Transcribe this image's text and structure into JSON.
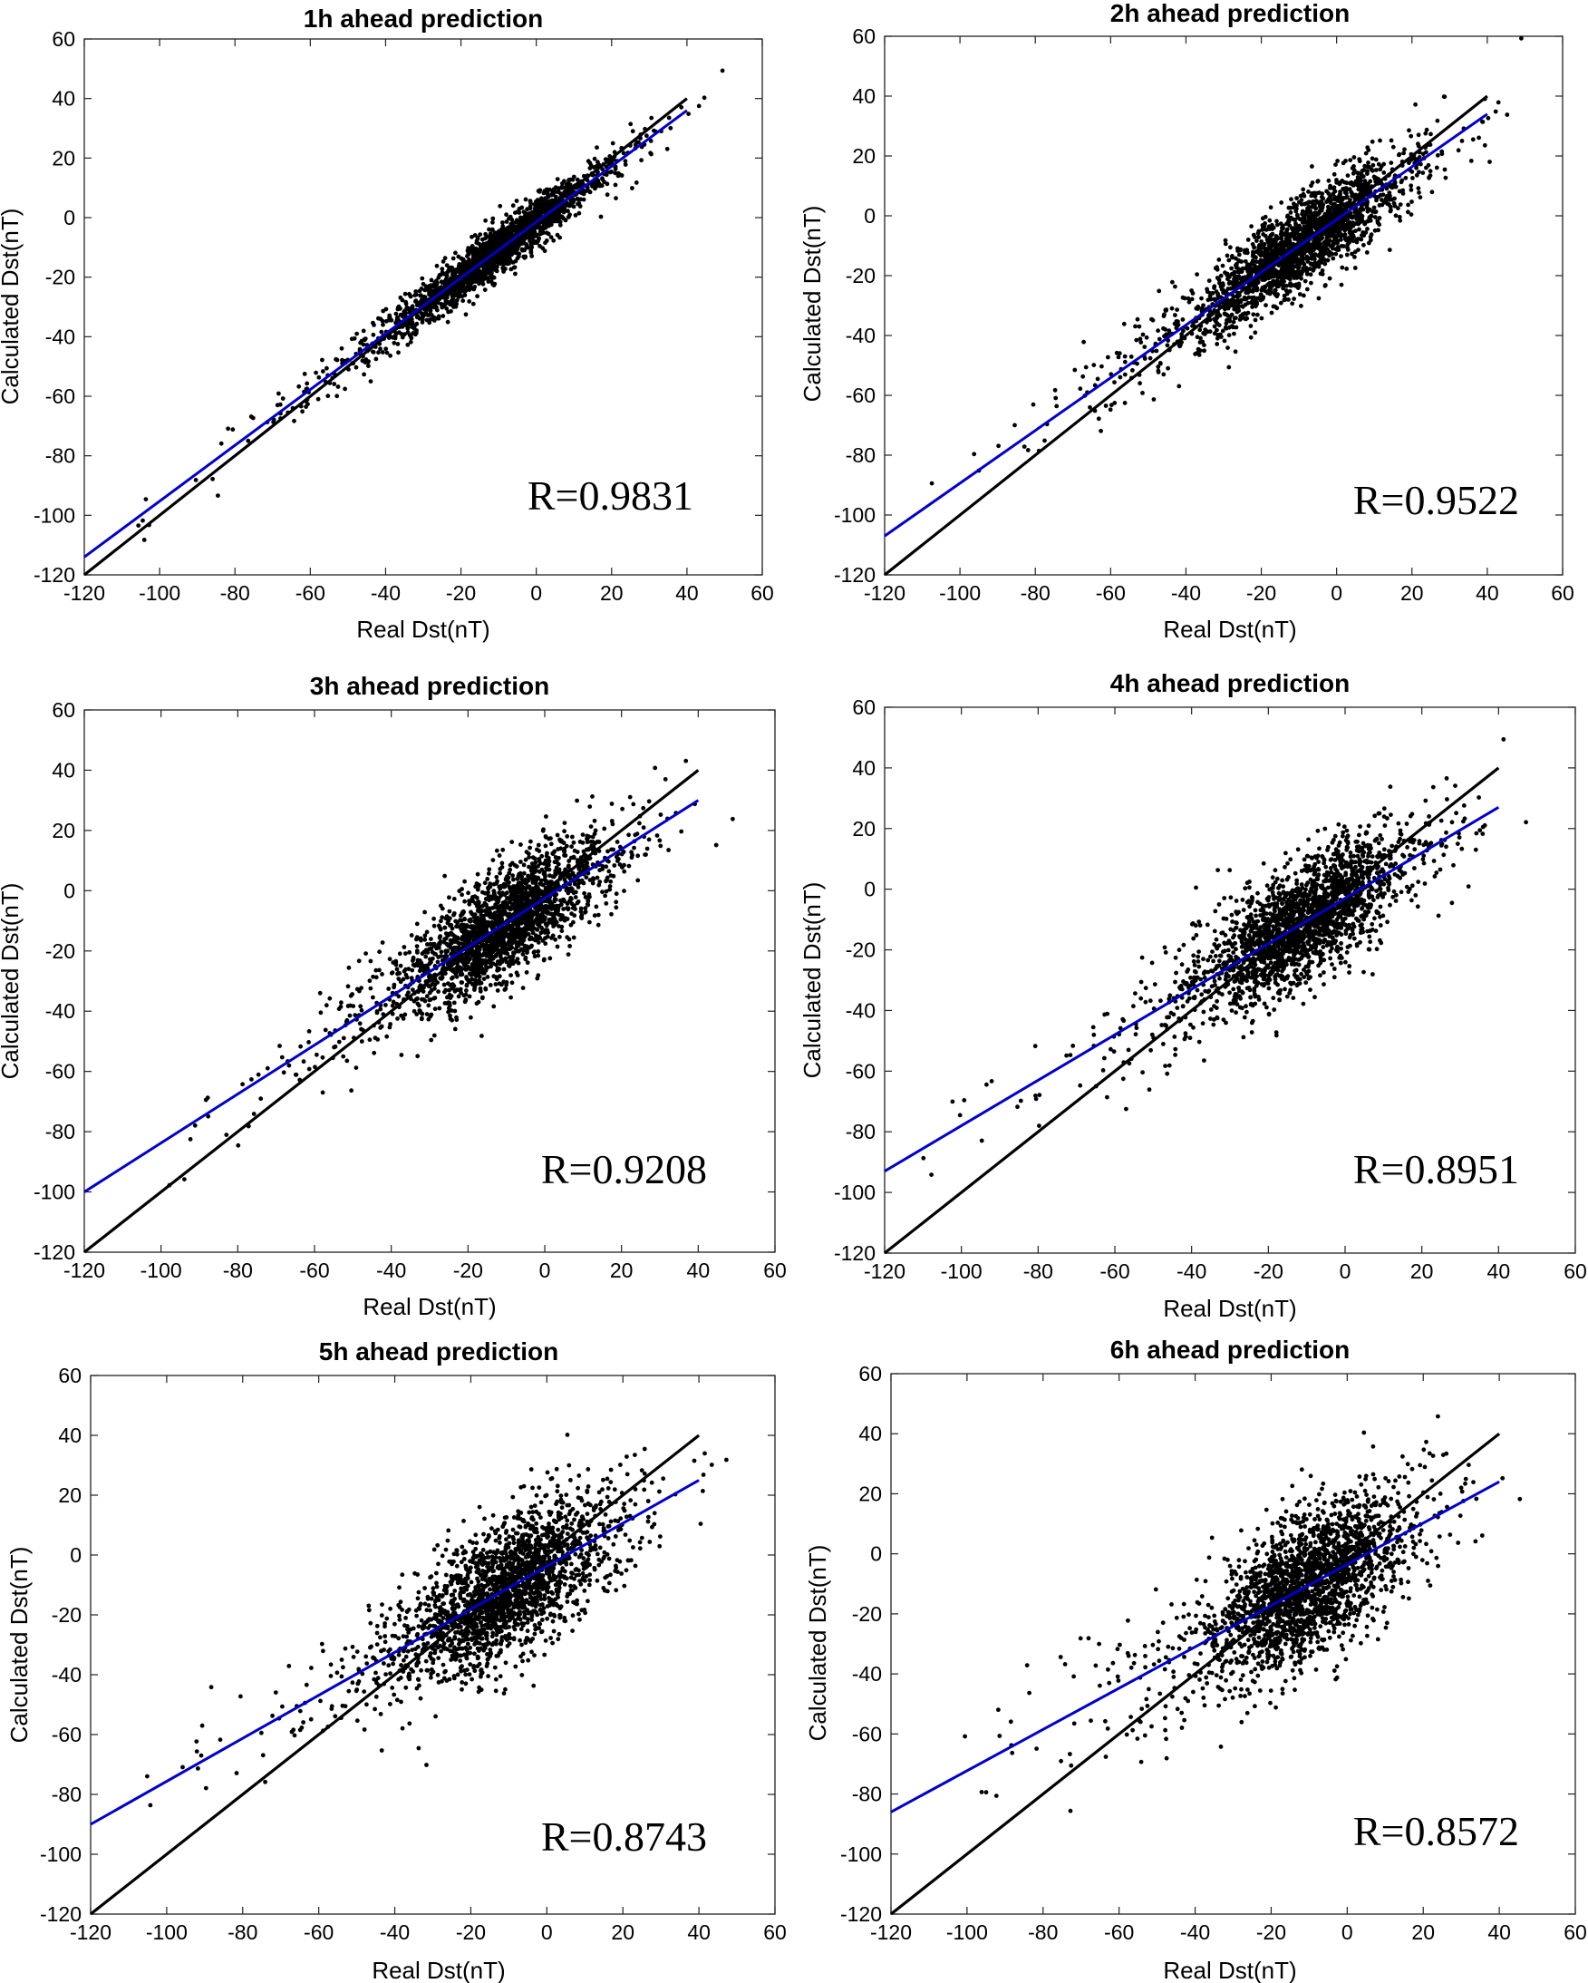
{
  "chart_data": [
    {
      "type": "scatter",
      "title": "1h ahead prediction",
      "xlabel": "Real Dst(nT)",
      "ylabel": "Calculated Dst(nT)",
      "xlim": [
        -120,
        60
      ],
      "ylim": [
        -120,
        60
      ],
      "xticks": [
        -120,
        -100,
        -80,
        -60,
        -40,
        -20,
        0,
        20,
        40,
        60
      ],
      "yticks": [
        -120,
        -100,
        -80,
        -60,
        -40,
        -20,
        0,
        20,
        40,
        60
      ],
      "annotation": "R=0.9831",
      "correlation": 0.9831,
      "series": [
        {
          "name": "Identity line",
          "color": "#000000",
          "x": [
            -120,
            40
          ],
          "y": [
            -120,
            40
          ]
        },
        {
          "name": "Fitted line",
          "color": "#0000cc",
          "x": [
            -120,
            40
          ],
          "y": [
            -114,
            36
          ]
        },
        {
          "name": "Points",
          "color": "#000000",
          "center_x": -10,
          "spread": 4,
          "x_range": [
            -110,
            50
          ]
        }
      ]
    },
    {
      "type": "scatter",
      "title": "2h ahead prediction",
      "xlabel": "Real Dst(nT)",
      "ylabel": "Calculated Dst(nT)",
      "xlim": [
        -120,
        60
      ],
      "ylim": [
        -120,
        60
      ],
      "xticks": [
        -120,
        -100,
        -80,
        -60,
        -40,
        -20,
        0,
        20,
        40,
        60
      ],
      "yticks": [
        -120,
        -100,
        -80,
        -60,
        -40,
        -20,
        0,
        20,
        40,
        60
      ],
      "annotation": "R=0.9522",
      "correlation": 0.9522,
      "series": [
        {
          "name": "Identity line",
          "color": "#000000",
          "x": [
            -120,
            40
          ],
          "y": [
            -120,
            40
          ]
        },
        {
          "name": "Fitted line",
          "color": "#0000cc",
          "x": [
            -120,
            40
          ],
          "y": [
            -107,
            34
          ]
        },
        {
          "name": "Points",
          "color": "#000000",
          "center_x": -10,
          "spread": 7,
          "x_range": [
            -110,
            50
          ]
        }
      ]
    },
    {
      "type": "scatter",
      "title": "3h ahead prediction",
      "xlabel": "Real Dst(nT)",
      "ylabel": "Calculated Dst(nT)",
      "xlim": [
        -120,
        60
      ],
      "ylim": [
        -120,
        60
      ],
      "xticks": [
        -120,
        -100,
        -80,
        -60,
        -40,
        -20,
        0,
        20,
        40,
        60
      ],
      "yticks": [
        -120,
        -100,
        -80,
        -60,
        -40,
        -20,
        0,
        20,
        40,
        60
      ],
      "annotation": "R=0.9208",
      "correlation": 0.9208,
      "series": [
        {
          "name": "Identity line",
          "color": "#000000",
          "x": [
            -120,
            40
          ],
          "y": [
            -120,
            40
          ]
        },
        {
          "name": "Fitted line",
          "color": "#0000cc",
          "x": [
            -120,
            40
          ],
          "y": [
            -100,
            30
          ]
        },
        {
          "name": "Points",
          "color": "#000000",
          "center_x": -10,
          "spread": 9,
          "x_range": [
            -110,
            50
          ]
        }
      ]
    },
    {
      "type": "scatter",
      "title": "4h ahead prediction",
      "xlabel": "Real Dst(nT)",
      "ylabel": "Calculated Dst(nT)",
      "xlim": [
        -120,
        60
      ],
      "ylim": [
        -120,
        60
      ],
      "xticks": [
        -120,
        -100,
        -80,
        -60,
        -40,
        -20,
        0,
        20,
        40,
        60
      ],
      "yticks": [
        -120,
        -100,
        -80,
        -60,
        -40,
        -20,
        0,
        20,
        40,
        60
      ],
      "annotation": "R=0.8951",
      "correlation": 0.8951,
      "series": [
        {
          "name": "Identity line",
          "color": "#000000",
          "x": [
            -120,
            40
          ],
          "y": [
            -120,
            40
          ]
        },
        {
          "name": "Fitted line",
          "color": "#0000cc",
          "x": [
            -120,
            40
          ],
          "y": [
            -93,
            27
          ]
        },
        {
          "name": "Points",
          "color": "#000000",
          "center_x": -10,
          "spread": 10,
          "x_range": [
            -110,
            50
          ]
        }
      ]
    },
    {
      "type": "scatter",
      "title": "5h ahead prediction",
      "xlabel": "Real Dst(nT)",
      "ylabel": "Calculated Dst(nT)",
      "xlim": [
        -120,
        60
      ],
      "ylim": [
        -120,
        60
      ],
      "xticks": [
        -120,
        -100,
        -80,
        -60,
        -40,
        -20,
        0,
        20,
        40,
        60
      ],
      "yticks": [
        -120,
        -100,
        -80,
        -60,
        -40,
        -20,
        0,
        20,
        40,
        60
      ],
      "annotation": "R=0.8743",
      "correlation": 0.8743,
      "series": [
        {
          "name": "Identity line",
          "color": "#000000",
          "x": [
            -120,
            40
          ],
          "y": [
            -120,
            40
          ]
        },
        {
          "name": "Fitted line",
          "color": "#0000cc",
          "x": [
            -120,
            40
          ],
          "y": [
            -90,
            25
          ]
        },
        {
          "name": "Points",
          "color": "#000000",
          "center_x": -10,
          "spread": 11,
          "x_range": [
            -110,
            50
          ]
        }
      ]
    },
    {
      "type": "scatter",
      "title": "6h ahead prediction",
      "xlabel": "Real Dst(nT)",
      "ylabel": "Calculated Dst(nT)",
      "xlim": [
        -120,
        60
      ],
      "ylim": [
        -120,
        60
      ],
      "xticks": [
        -120,
        -100,
        -80,
        -60,
        -40,
        -20,
        0,
        20,
        40,
        60
      ],
      "yticks": [
        -120,
        -100,
        -80,
        -60,
        -40,
        -20,
        0,
        20,
        40,
        60
      ],
      "annotation": "R=0.8572",
      "correlation": 0.8572,
      "series": [
        {
          "name": "Identity line",
          "color": "#000000",
          "x": [
            -120,
            40
          ],
          "y": [
            -120,
            40
          ]
        },
        {
          "name": "Fitted line",
          "color": "#0000cc",
          "x": [
            -120,
            40
          ],
          "y": [
            -86,
            24
          ]
        },
        {
          "name": "Points",
          "color": "#000000",
          "center_x": -10,
          "spread": 12,
          "x_range": [
            -110,
            50
          ]
        }
      ]
    }
  ]
}
